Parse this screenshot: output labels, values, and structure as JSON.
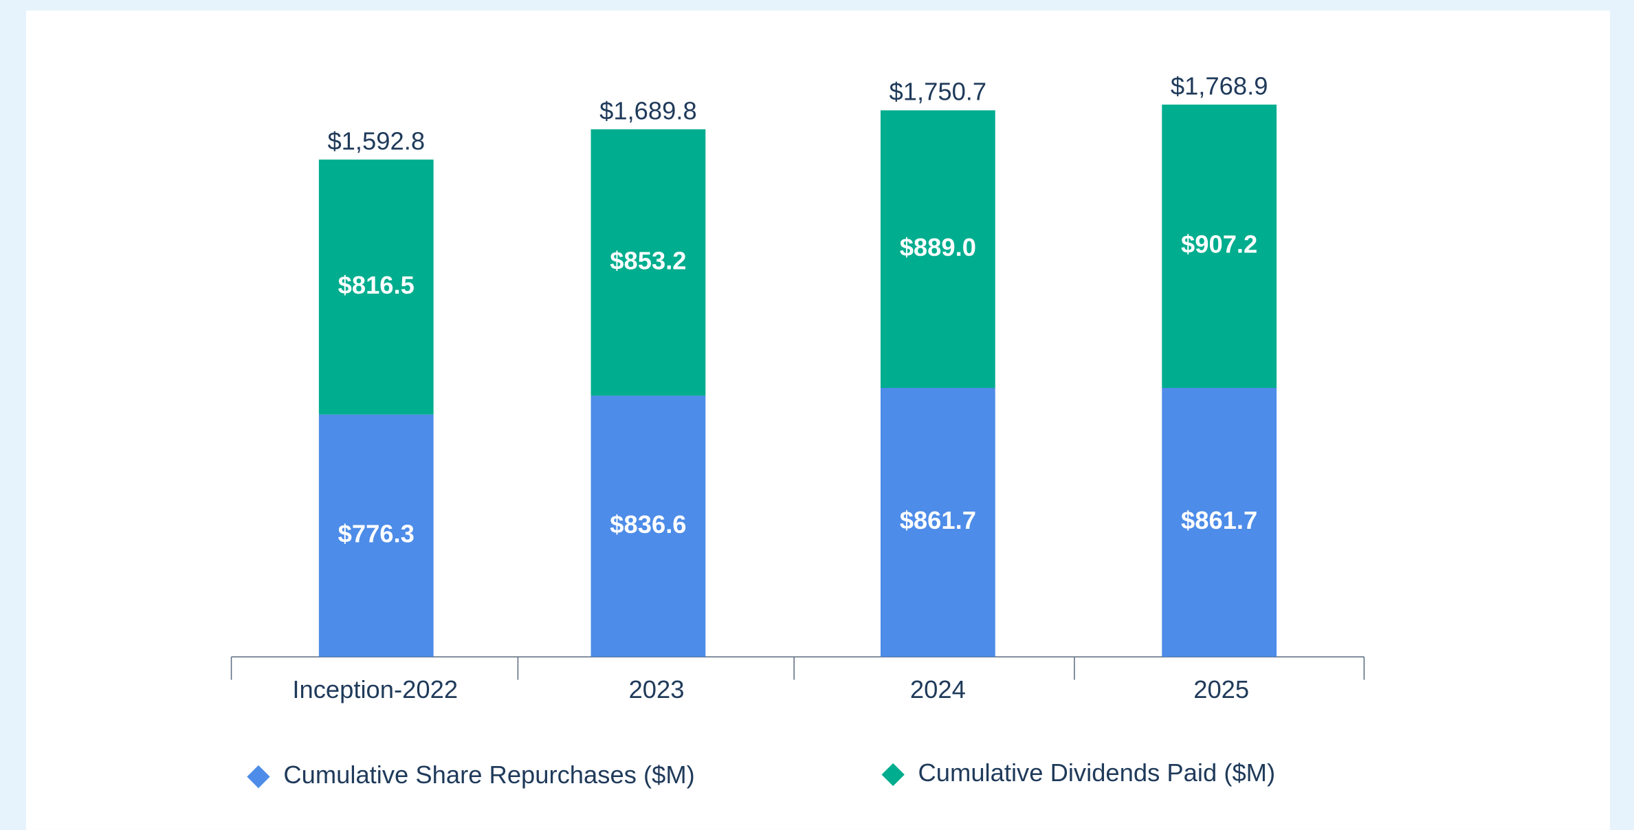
{
  "chart_data": {
    "type": "stacked_bar",
    "categories": [
      "Inception-2022",
      "2023",
      "2024",
      "2025"
    ],
    "series": [
      {
        "name": "Cumulative Share Repurchases ($M)",
        "color": "#4d8ce8",
        "values": [
          776.3,
          836.6,
          861.7,
          861.7
        ],
        "value_labels": [
          "$776.3",
          "$836.6",
          "$861.7",
          "$861.7"
        ]
      },
      {
        "name": "Cumulative Dividends Paid ($M)",
        "color": "#00ad8e",
        "values": [
          816.5,
          853.2,
          889.0,
          907.2
        ],
        "value_labels": [
          "$816.5",
          "$853.2",
          "$889.0",
          "$907.2"
        ]
      }
    ],
    "totals": [
      1592.8,
      1689.8,
      1750.7,
      1768.9
    ],
    "total_labels": [
      "$1,592.8",
      "$1,689.8",
      "$1,750.7",
      "$1,768.9"
    ],
    "ylim": [
      0,
      1900
    ],
    "legend": "bottom"
  }
}
